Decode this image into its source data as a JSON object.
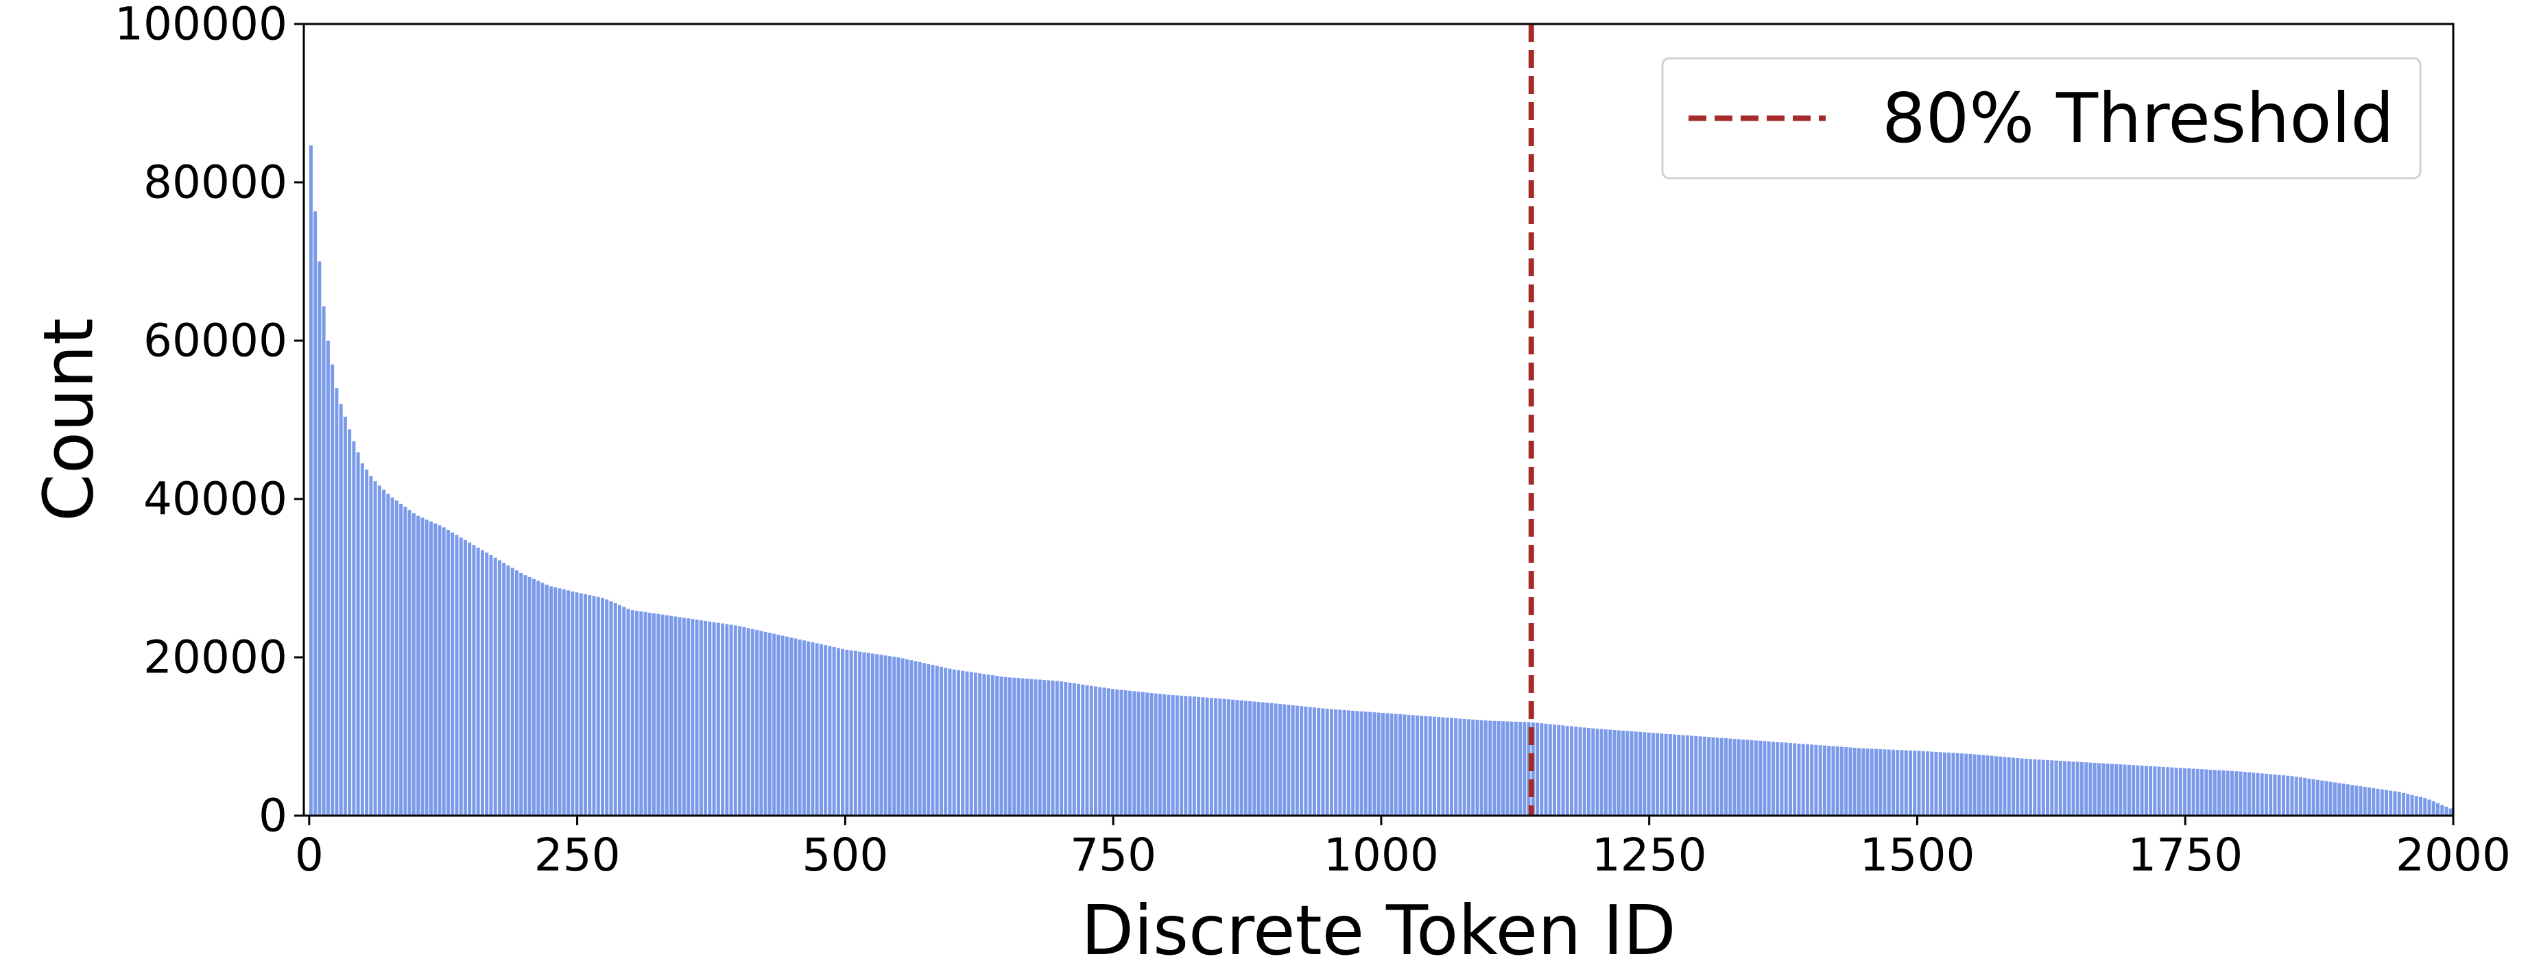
{
  "chart_data": {
    "type": "bar",
    "xlabel": "Discrete Token ID",
    "ylabel": "Count",
    "xlim": [
      -5,
      2000
    ],
    "ylim": [
      0,
      100000
    ],
    "x_ticks": [
      0,
      250,
      500,
      750,
      1000,
      1250,
      1500,
      1750,
      2000
    ],
    "x_tick_labels": [
      "0",
      "250",
      "500",
      "750",
      "1000",
      "1250",
      "1500",
      "1750",
      "2000"
    ],
    "y_ticks": [
      0,
      20000,
      40000,
      60000,
      80000,
      100000
    ],
    "y_tick_labels": [
      "0",
      "20000",
      "40000",
      "60000",
      "80000",
      "100000"
    ],
    "grid": false,
    "series": [
      {
        "color": "#7b9bea",
        "profile": [
          [
            0,
            88000
          ],
          [
            3,
            83000
          ],
          [
            5,
            78000
          ],
          [
            8,
            73000
          ],
          [
            10,
            70000
          ],
          [
            12,
            67000
          ],
          [
            15,
            63000
          ],
          [
            18,
            60000
          ],
          [
            22,
            57000
          ],
          [
            26,
            54000
          ],
          [
            30,
            52000
          ],
          [
            35,
            50000
          ],
          [
            40,
            48000
          ],
          [
            50,
            44500
          ],
          [
            60,
            42500
          ],
          [
            75,
            40500
          ],
          [
            90,
            39000
          ],
          [
            100,
            38000
          ],
          [
            125,
            36500
          ],
          [
            150,
            34500
          ],
          [
            175,
            32500
          ],
          [
            200,
            30500
          ],
          [
            225,
            29000
          ],
          [
            250,
            28200
          ],
          [
            275,
            27500
          ],
          [
            300,
            26000
          ],
          [
            350,
            25000
          ],
          [
            400,
            24000
          ],
          [
            450,
            22500
          ],
          [
            500,
            21000
          ],
          [
            550,
            20000
          ],
          [
            600,
            18500
          ],
          [
            650,
            17500
          ],
          [
            700,
            17000
          ],
          [
            750,
            16000
          ],
          [
            800,
            15300
          ],
          [
            850,
            14800
          ],
          [
            900,
            14200
          ],
          [
            950,
            13500
          ],
          [
            1000,
            13000
          ],
          [
            1050,
            12500
          ],
          [
            1100,
            12000
          ],
          [
            1140,
            11800
          ],
          [
            1200,
            11000
          ],
          [
            1250,
            10500
          ],
          [
            1300,
            10000
          ],
          [
            1350,
            9500
          ],
          [
            1400,
            9000
          ],
          [
            1450,
            8500
          ],
          [
            1500,
            8200
          ],
          [
            1550,
            7800
          ],
          [
            1600,
            7200
          ],
          [
            1650,
            6800
          ],
          [
            1700,
            6400
          ],
          [
            1750,
            6000
          ],
          [
            1800,
            5600
          ],
          [
            1850,
            5000
          ],
          [
            1900,
            4000
          ],
          [
            1950,
            3000
          ],
          [
            1975,
            2200
          ],
          [
            2000,
            800
          ]
        ]
      }
    ],
    "threshold": {
      "x": 1140,
      "label": "80% Threshold",
      "color": "#a52a2a",
      "style": "dashed"
    },
    "legend": {
      "position": "top-right",
      "entries": [
        "80% Threshold"
      ]
    }
  }
}
